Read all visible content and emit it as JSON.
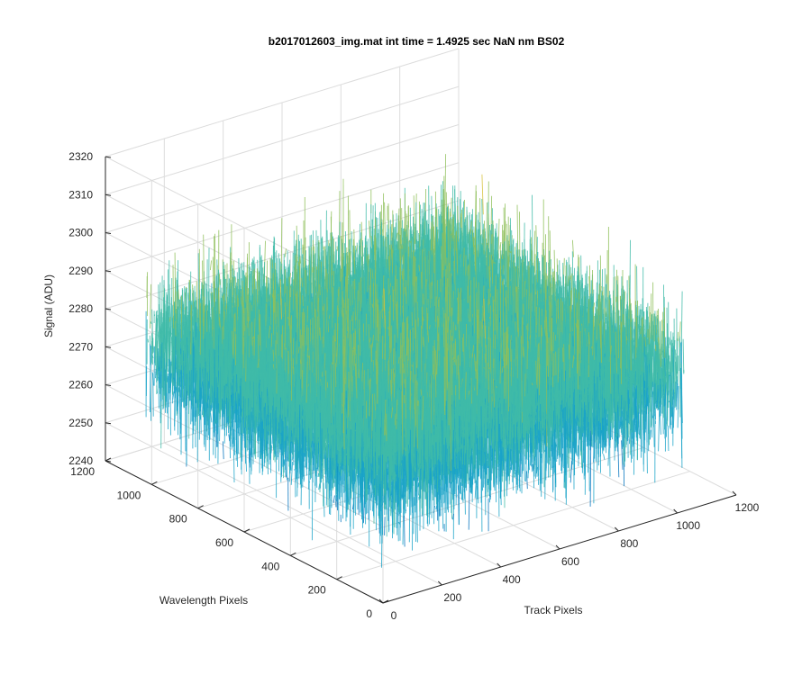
{
  "chart_data": {
    "type": "surface",
    "title": "b2017012603_img.mat int time = 1.4925 sec  NaN nm BS02",
    "xlabel": "Track Pixels",
    "ylabel": "Wavelength Pixels",
    "zlabel": "Signal (ADU)",
    "xlim": [
      0,
      1200
    ],
    "ylim": [
      0,
      1200
    ],
    "zlim": [
      2240,
      2320
    ],
    "xticks": [
      "0",
      "200",
      "400",
      "600",
      "800",
      "1000",
      "1200"
    ],
    "yticks": [
      "0",
      "200",
      "400",
      "600",
      "800",
      "1000",
      "1200"
    ],
    "zticks": [
      "2240",
      "2250",
      "2260",
      "2270",
      "2280",
      "2290",
      "2300",
      "2310",
      "2320"
    ],
    "data_extent": {
      "x": [
        1,
        1024
      ],
      "y": [
        1,
        1024
      ]
    },
    "signal": {
      "mean": 2275,
      "noise_range": [
        2245,
        2312
      ]
    },
    "grid": true,
    "colormap": [
      "#0072bd",
      "#1aa3c8",
      "#3fbba8",
      "#8fc05a",
      "#d6c13a"
    ]
  }
}
